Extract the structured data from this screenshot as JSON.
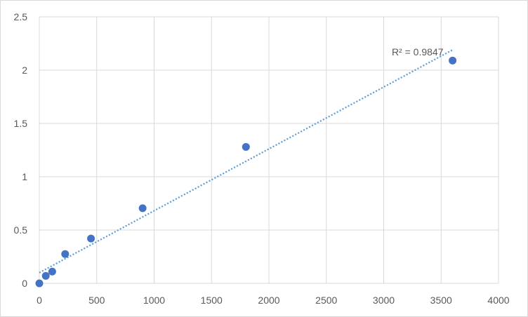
{
  "chart_data": {
    "type": "scatter",
    "title": "",
    "xlabel": "",
    "ylabel": "",
    "xlim": [
      0,
      4000
    ],
    "ylim": [
      0,
      2.5
    ],
    "x_ticks": [
      0,
      500,
      1000,
      1500,
      2000,
      2500,
      3000,
      3500,
      4000
    ],
    "y_ticks": [
      0,
      0.5,
      1,
      1.5,
      2,
      2.5
    ],
    "x_tick_labels": [
      "0",
      "500",
      "1000",
      "1500",
      "2000",
      "2500",
      "3000",
      "3500",
      "4000"
    ],
    "y_tick_labels": [
      "0",
      "0.5",
      "1",
      "1.5",
      "2",
      "2.5"
    ],
    "grid": true,
    "legend": "none",
    "series": [
      {
        "x": [
          0,
          56.25,
          112.5,
          225,
          450,
          900,
          1800,
          3600
        ],
        "y": [
          0.0,
          0.07,
          0.11,
          0.275,
          0.42,
          0.705,
          1.28,
          2.09
        ],
        "color": "#4472c4"
      }
    ],
    "trendline": {
      "type": "linear",
      "from": [
        0,
        0.1
      ],
      "to": [
        3600,
        2.19
      ],
      "color": "#5b9bd5",
      "style": "dotted"
    },
    "annotations": [
      {
        "text": "R² = 0.9847",
        "x": 3070,
        "y": 2.17
      }
    ]
  }
}
